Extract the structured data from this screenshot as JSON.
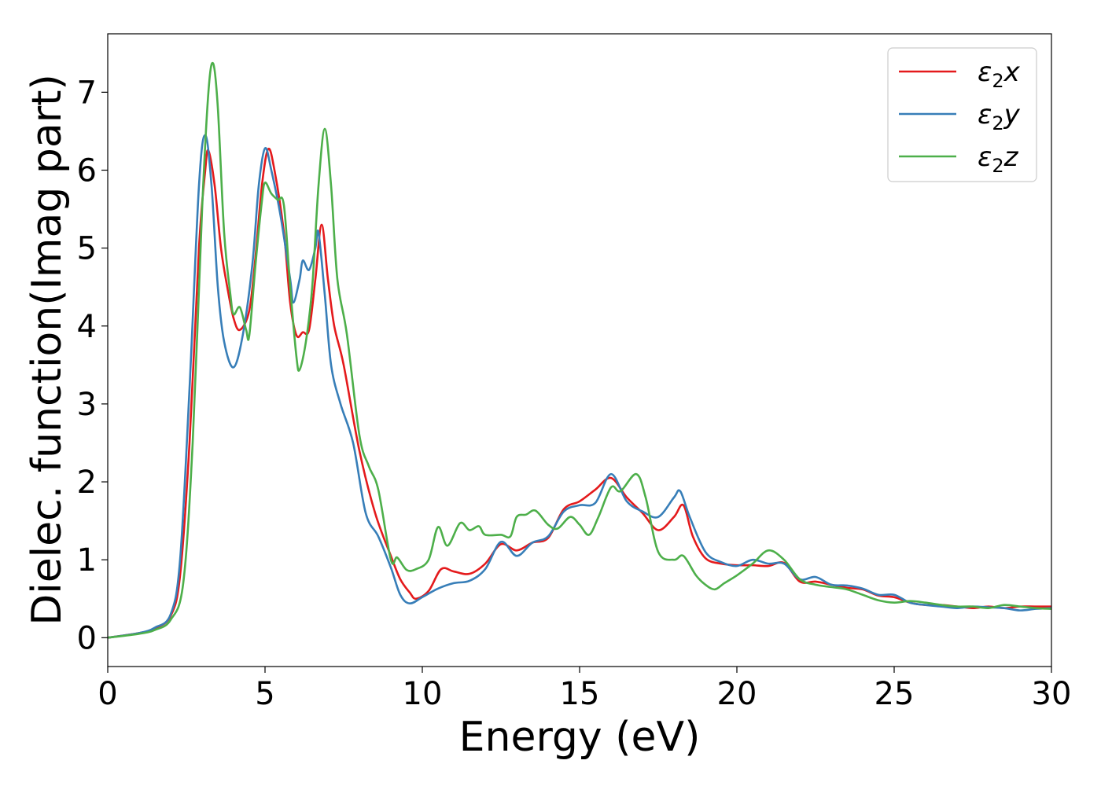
{
  "chart_data": {
    "type": "line",
    "title": "",
    "xlabel": "Energy (eV)",
    "ylabel": "Dielec. function(Imag part)",
    "xlim": [
      0,
      30
    ],
    "ylim": [
      -0.37,
      7.75
    ],
    "xticks": [
      0,
      5,
      10,
      15,
      20,
      25,
      30
    ],
    "yticks": [
      0,
      1,
      2,
      3,
      4,
      5,
      6,
      7
    ],
    "grid": false,
    "legend": {
      "position": "upper-right"
    },
    "series": [
      {
        "name": "ε₂x",
        "label_base": "ε",
        "label_sub": "2",
        "label_tail": "x",
        "color": "#e41a1c",
        "points": [
          [
            0,
            0
          ],
          [
            1,
            0.06
          ],
          [
            1.5,
            0.12
          ],
          [
            2,
            0.28
          ],
          [
            2.3,
            0.8
          ],
          [
            2.6,
            2.5
          ],
          [
            2.9,
            5.0
          ],
          [
            3.1,
            6.0
          ],
          [
            3.2,
            6.25
          ],
          [
            3.4,
            5.8
          ],
          [
            3.6,
            5.0
          ],
          [
            3.8,
            4.5
          ],
          [
            4.0,
            4.1
          ],
          [
            4.2,
            3.95
          ],
          [
            4.5,
            4.2
          ],
          [
            4.7,
            4.9
          ],
          [
            4.9,
            5.8
          ],
          [
            5.1,
            6.27
          ],
          [
            5.3,
            6.0
          ],
          [
            5.6,
            5.2
          ],
          [
            5.8,
            4.3
          ],
          [
            6.0,
            3.88
          ],
          [
            6.2,
            3.92
          ],
          [
            6.4,
            3.95
          ],
          [
            6.6,
            4.6
          ],
          [
            6.8,
            5.3
          ],
          [
            7.0,
            4.6
          ],
          [
            7.2,
            4.0
          ],
          [
            7.5,
            3.5
          ],
          [
            8.0,
            2.4
          ],
          [
            8.5,
            1.6
          ],
          [
            9.0,
            1.05
          ],
          [
            9.3,
            0.75
          ],
          [
            9.6,
            0.58
          ],
          [
            9.8,
            0.5
          ],
          [
            10.2,
            0.6
          ],
          [
            10.6,
            0.88
          ],
          [
            11.0,
            0.85
          ],
          [
            11.5,
            0.82
          ],
          [
            12.0,
            0.95
          ],
          [
            12.5,
            1.2
          ],
          [
            13.0,
            1.12
          ],
          [
            13.5,
            1.22
          ],
          [
            14.0,
            1.28
          ],
          [
            14.5,
            1.65
          ],
          [
            15.0,
            1.75
          ],
          [
            15.5,
            1.9
          ],
          [
            16.0,
            2.05
          ],
          [
            16.5,
            1.8
          ],
          [
            17.0,
            1.6
          ],
          [
            17.5,
            1.38
          ],
          [
            18.0,
            1.55
          ],
          [
            18.3,
            1.7
          ],
          [
            18.6,
            1.3
          ],
          [
            19.0,
            1.02
          ],
          [
            19.5,
            0.95
          ],
          [
            20.0,
            0.93
          ],
          [
            20.5,
            0.93
          ],
          [
            21.0,
            0.92
          ],
          [
            21.5,
            0.96
          ],
          [
            22.0,
            0.72
          ],
          [
            22.5,
            0.72
          ],
          [
            23.0,
            0.68
          ],
          [
            23.5,
            0.64
          ],
          [
            24.0,
            0.62
          ],
          [
            24.5,
            0.54
          ],
          [
            25.0,
            0.52
          ],
          [
            25.5,
            0.45
          ],
          [
            26.0,
            0.42
          ],
          [
            26.5,
            0.42
          ],
          [
            27.0,
            0.4
          ],
          [
            27.5,
            0.38
          ],
          [
            28.0,
            0.4
          ],
          [
            28.5,
            0.38
          ],
          [
            29.0,
            0.4
          ],
          [
            29.5,
            0.4
          ],
          [
            30.0,
            0.4
          ]
        ]
      },
      {
        "name": "ε₂y",
        "label_base": "ε",
        "label_sub": "2",
        "label_tail": "y",
        "color": "#377eb8",
        "points": [
          [
            0,
            0
          ],
          [
            1,
            0.06
          ],
          [
            1.5,
            0.13
          ],
          [
            2,
            0.3
          ],
          [
            2.3,
            1.0
          ],
          [
            2.6,
            3.2
          ],
          [
            2.9,
            5.8
          ],
          [
            3.1,
            6.45
          ],
          [
            3.3,
            5.8
          ],
          [
            3.5,
            4.5
          ],
          [
            3.7,
            3.8
          ],
          [
            4.0,
            3.47
          ],
          [
            4.3,
            3.9
          ],
          [
            4.6,
            4.8
          ],
          [
            4.8,
            5.8
          ],
          [
            5.0,
            6.28
          ],
          [
            5.2,
            6.0
          ],
          [
            5.5,
            5.4
          ],
          [
            5.8,
            4.6
          ],
          [
            5.9,
            4.3
          ],
          [
            6.1,
            4.6
          ],
          [
            6.2,
            4.84
          ],
          [
            6.4,
            4.72
          ],
          [
            6.6,
            5.0
          ],
          [
            6.7,
            5.2
          ],
          [
            6.9,
            4.4
          ],
          [
            7.1,
            3.5
          ],
          [
            7.4,
            3.0
          ],
          [
            7.8,
            2.5
          ],
          [
            8.2,
            1.6
          ],
          [
            8.6,
            1.3
          ],
          [
            9.0,
            0.9
          ],
          [
            9.3,
            0.55
          ],
          [
            9.6,
            0.44
          ],
          [
            10.0,
            0.52
          ],
          [
            10.5,
            0.63
          ],
          [
            11.0,
            0.7
          ],
          [
            11.5,
            0.73
          ],
          [
            12.0,
            0.88
          ],
          [
            12.5,
            1.23
          ],
          [
            13.0,
            1.05
          ],
          [
            13.5,
            1.22
          ],
          [
            14.0,
            1.3
          ],
          [
            14.5,
            1.62
          ],
          [
            15.0,
            1.7
          ],
          [
            15.5,
            1.73
          ],
          [
            16.0,
            2.1
          ],
          [
            16.5,
            1.75
          ],
          [
            17.0,
            1.62
          ],
          [
            17.5,
            1.55
          ],
          [
            18.0,
            1.8
          ],
          [
            18.2,
            1.88
          ],
          [
            18.5,
            1.55
          ],
          [
            19.0,
            1.1
          ],
          [
            19.5,
            0.97
          ],
          [
            20.0,
            0.92
          ],
          [
            20.5,
            1.0
          ],
          [
            21.0,
            0.95
          ],
          [
            21.5,
            0.95
          ],
          [
            22.0,
            0.75
          ],
          [
            22.5,
            0.78
          ],
          [
            23.0,
            0.68
          ],
          [
            23.5,
            0.67
          ],
          [
            24.0,
            0.63
          ],
          [
            24.5,
            0.55
          ],
          [
            25.0,
            0.55
          ],
          [
            25.5,
            0.45
          ],
          [
            26.0,
            0.42
          ],
          [
            26.5,
            0.4
          ],
          [
            27.0,
            0.38
          ],
          [
            27.5,
            0.4
          ],
          [
            28.0,
            0.39
          ],
          [
            28.5,
            0.38
          ],
          [
            29.0,
            0.35
          ],
          [
            29.5,
            0.37
          ],
          [
            30.0,
            0.38
          ]
        ]
      },
      {
        "name": "ε₂z",
        "label_base": "ε",
        "label_sub": "2",
        "label_tail": "z",
        "color": "#4daf4a",
        "points": [
          [
            0,
            0
          ],
          [
            1,
            0.05
          ],
          [
            1.5,
            0.1
          ],
          [
            2,
            0.23
          ],
          [
            2.4,
            0.7
          ],
          [
            2.7,
            2.5
          ],
          [
            3.0,
            5.5
          ],
          [
            3.2,
            7.0
          ],
          [
            3.35,
            7.37
          ],
          [
            3.5,
            6.8
          ],
          [
            3.7,
            5.2
          ],
          [
            3.9,
            4.4
          ],
          [
            4.0,
            4.15
          ],
          [
            4.2,
            4.24
          ],
          [
            4.4,
            3.95
          ],
          [
            4.5,
            3.88
          ],
          [
            4.7,
            4.8
          ],
          [
            4.9,
            5.6
          ],
          [
            5.0,
            5.84
          ],
          [
            5.2,
            5.7
          ],
          [
            5.4,
            5.62
          ],
          [
            5.6,
            5.55
          ],
          [
            5.8,
            4.5
          ],
          [
            6.0,
            3.6
          ],
          [
            6.1,
            3.44
          ],
          [
            6.3,
            3.8
          ],
          [
            6.5,
            4.5
          ],
          [
            6.7,
            5.8
          ],
          [
            6.9,
            6.53
          ],
          [
            7.1,
            5.8
          ],
          [
            7.3,
            4.6
          ],
          [
            7.6,
            3.9
          ],
          [
            8.0,
            2.6
          ],
          [
            8.3,
            2.2
          ],
          [
            8.6,
            1.9
          ],
          [
            9.0,
            1.0
          ],
          [
            9.2,
            1.03
          ],
          [
            9.5,
            0.87
          ],
          [
            9.8,
            0.88
          ],
          [
            10.2,
            1.0
          ],
          [
            10.5,
            1.42
          ],
          [
            10.8,
            1.18
          ],
          [
            11.2,
            1.47
          ],
          [
            11.5,
            1.38
          ],
          [
            11.8,
            1.43
          ],
          [
            12.0,
            1.32
          ],
          [
            12.5,
            1.32
          ],
          [
            12.8,
            1.3
          ],
          [
            13.0,
            1.55
          ],
          [
            13.3,
            1.58
          ],
          [
            13.6,
            1.63
          ],
          [
            14.0,
            1.45
          ],
          [
            14.3,
            1.4
          ],
          [
            14.7,
            1.55
          ],
          [
            15.0,
            1.45
          ],
          [
            15.3,
            1.32
          ],
          [
            15.6,
            1.55
          ],
          [
            16.0,
            1.93
          ],
          [
            16.3,
            1.88
          ],
          [
            16.8,
            2.1
          ],
          [
            17.1,
            1.8
          ],
          [
            17.5,
            1.1
          ],
          [
            18.0,
            1.0
          ],
          [
            18.3,
            1.05
          ],
          [
            18.7,
            0.8
          ],
          [
            19.0,
            0.68
          ],
          [
            19.3,
            0.62
          ],
          [
            19.6,
            0.7
          ],
          [
            20.0,
            0.8
          ],
          [
            20.5,
            0.95
          ],
          [
            21.0,
            1.12
          ],
          [
            21.5,
            1.0
          ],
          [
            22.0,
            0.75
          ],
          [
            22.5,
            0.68
          ],
          [
            23.0,
            0.65
          ],
          [
            23.5,
            0.62
          ],
          [
            24.0,
            0.55
          ],
          [
            24.5,
            0.48
          ],
          [
            25.0,
            0.45
          ],
          [
            25.5,
            0.47
          ],
          [
            26.0,
            0.45
          ],
          [
            26.5,
            0.42
          ],
          [
            27.0,
            0.4
          ],
          [
            27.5,
            0.4
          ],
          [
            28.0,
            0.38
          ],
          [
            28.5,
            0.42
          ],
          [
            29.0,
            0.4
          ],
          [
            29.5,
            0.38
          ],
          [
            30.0,
            0.37
          ]
        ]
      }
    ]
  }
}
